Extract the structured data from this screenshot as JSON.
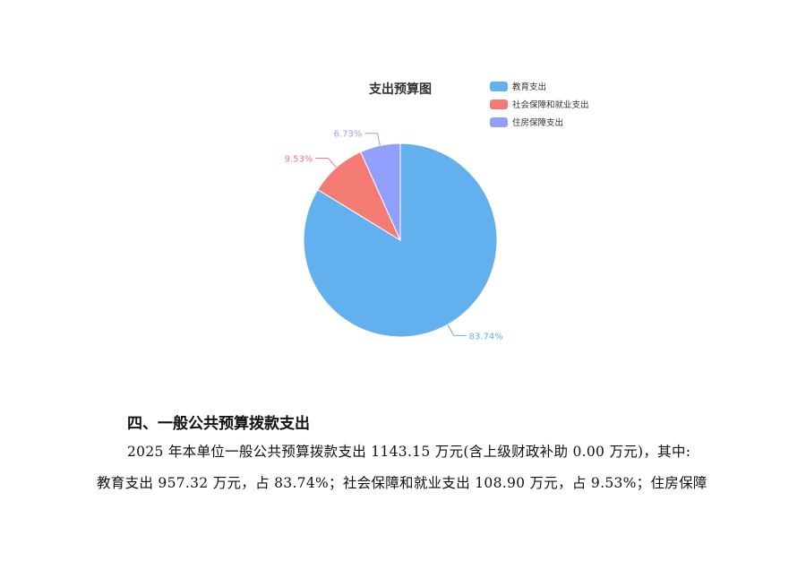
{
  "chart_data": {
    "type": "pie",
    "title": "支出预算图",
    "legend_position": "top-right",
    "categories": [
      "教育支出",
      "社会保障和就业支出",
      "住房保障支出"
    ],
    "values": [
      83.74,
      9.53,
      6.73
    ],
    "labels": [
      "83.74%",
      "9.53%",
      "6.73%"
    ],
    "colors": [
      "#62b0ee",
      "#f47a74",
      "#939ffc"
    ]
  },
  "document": {
    "heading": "四、一般公共预算拨款支出",
    "paragraph_line1": "2025 年本单位一般公共预算拨款支出 1143.15 万元(含上级财政补助 0.00 万元)，其中:",
    "paragraph_line2": "教育支出 957.32 万元，占 83.74%；社会保障和就业支出 108.90 万元，占 9.53%；住房保障"
  }
}
